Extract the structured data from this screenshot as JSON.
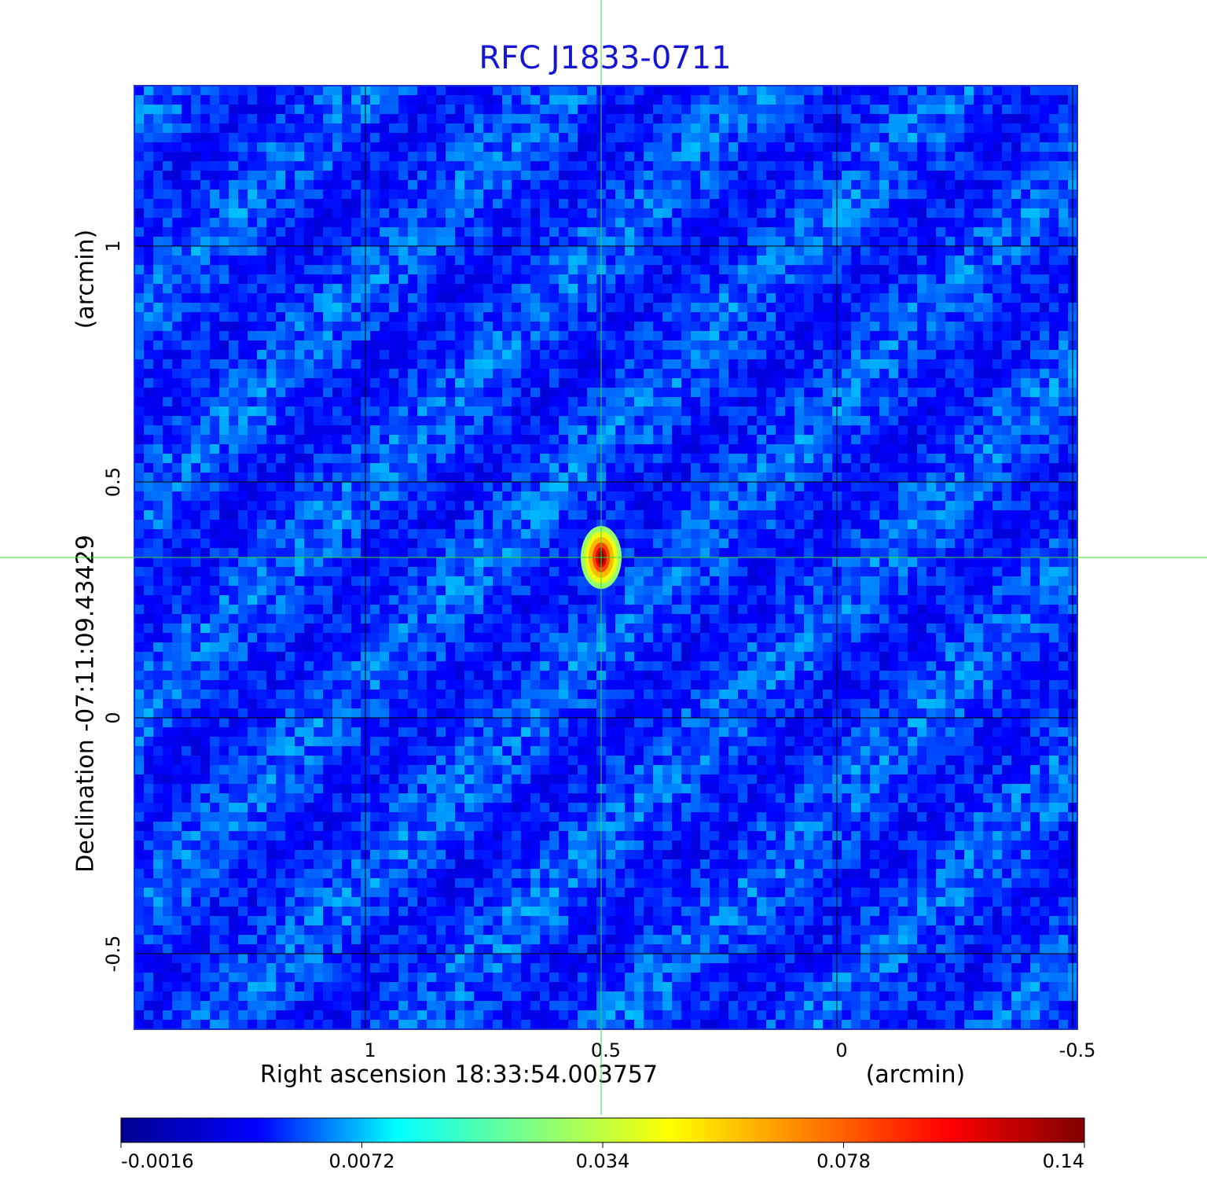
{
  "chart_data": {
    "type": "image",
    "title": "RFC J1833-0711",
    "x_label": "Right ascension  18:33:54.003757",
    "x_unit": "(arcmin)",
    "y_label": "Declination  -07:11:09.43429",
    "y_unit": "(arcmin)",
    "xlim": [
      1.49,
      -0.51
    ],
    "ylim": [
      -0.66,
      1.34
    ],
    "xticks": [
      1.0,
      0.5,
      0.0,
      -0.5
    ],
    "yticks": [
      1.0,
      0.5,
      0.0,
      -0.5
    ],
    "grid": true,
    "source": {
      "x": 0.5,
      "y": 0.34,
      "peak": 0.14
    },
    "colorbar": {
      "ticks": [
        -0.0016,
        0.0072,
        0.034,
        0.078,
        0.14
      ],
      "colors": [
        "#00008f",
        "#0000ff",
        "#00ffff",
        "#80ff80",
        "#ffff00",
        "#ff8000",
        "#ff0000",
        "#800000"
      ]
    }
  }
}
